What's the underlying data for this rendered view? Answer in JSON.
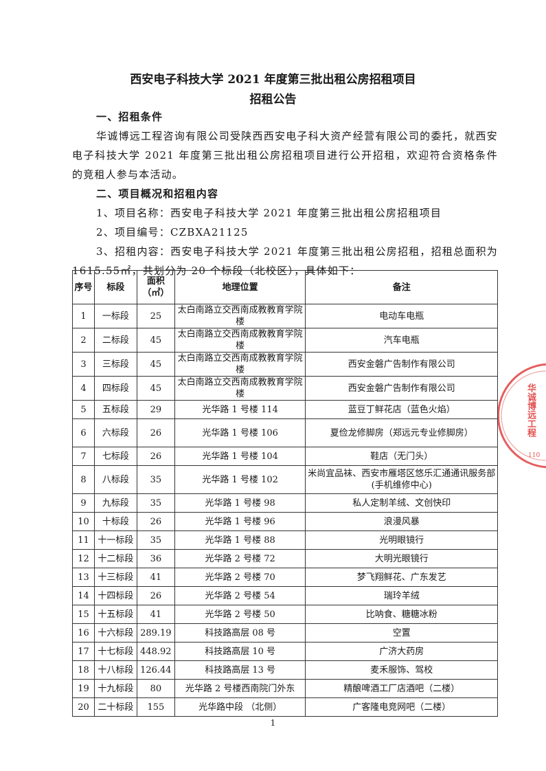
{
  "title": {
    "line1": "西安电子科技大学 2021 年度第三批出租公房招租项目",
    "line2": "招租公告"
  },
  "sections": {
    "s1_heading": "一、招租条件",
    "s1_body": "华诚博远工程咨询有限公司受陕西西安电子科大资产经营有限公司的委托，就西安电子科技大学 2021 年度第三批出租公房招租项目进行公开招租，欢迎符合资格条件的竞租人参与本活动。",
    "s2_heading": "二、项目概况和招租内容",
    "item1": "1、项目名称：西安电子科技大学 2021 年度第三批出租公房招租项目",
    "item2": "2、项目编号：CZBXA21125",
    "item3": "3、招租内容：西安电子科技大学 2021 年度第三批出租公房招租，招租总面积为 1615.55㎡，共划分为 20 个标段（北校区），具体如下："
  },
  "table": {
    "headers": [
      "序号",
      "标段",
      "面积（㎡）",
      "地理位置",
      "备注"
    ],
    "rows": [
      [
        "1",
        "一标段",
        "25",
        "太白南路立交西南成教教育学院楼",
        "电动车电瓶"
      ],
      [
        "2",
        "二标段",
        "45",
        "太白南路立交西南成教教育学院楼",
        "汽车电瓶"
      ],
      [
        "3",
        "三标段",
        "45",
        "太白南路立交西南成教教育学院楼",
        "西安金磐广告制作有限公司"
      ],
      [
        "4",
        "四标段",
        "45",
        "太白南路立交西南成教教育学院楼",
        "西安金磐广告制作有限公司"
      ],
      [
        "5",
        "五标段",
        "29",
        "光华路 1 号楼 114",
        "蓝豆丁鲜花店（蓝色火焰）"
      ],
      [
        "6",
        "六标段",
        "26",
        "光华路 1 号楼 106",
        "夏俭龙修脚房（郑远元专业修脚房）"
      ],
      [
        "7",
        "七标段",
        "26",
        "光华路 1 号楼 104",
        "鞋店（无门头）"
      ],
      [
        "8",
        "八标段",
        "35",
        "光华路 1 号楼 102",
        "米尚宜品袜、西安市雁塔区悠乐汇通通讯服务部(手机维修中心)"
      ],
      [
        "9",
        "九标段",
        "35",
        "光华路 1 号楼 98",
        "私人定制羊绒、文创快印"
      ],
      [
        "10",
        "十标段",
        "26",
        "光华路 1 号楼 96",
        "浪漫风暴"
      ],
      [
        "11",
        "十一标段",
        "35",
        "光华路 1 号楼 88",
        "光明眼镜行"
      ],
      [
        "12",
        "十二标段",
        "36",
        "光华路 2 号楼 72",
        "大明光眼镜行"
      ],
      [
        "13",
        "十三标段",
        "41",
        "光华路 2 号楼 70",
        "梦飞翔鲜花、广东发艺"
      ],
      [
        "14",
        "十四标段",
        "26",
        "光华路 2 号楼 54",
        "瑞玲羊绒"
      ],
      [
        "15",
        "十五标段",
        "41",
        "光华路 2 号楼 50",
        "比呐食、糖糖冰粉"
      ],
      [
        "16",
        "十六标段",
        "289.19",
        "科技路高层 08 号",
        "空置"
      ],
      [
        "17",
        "十七标段",
        "448.92",
        "科技路高层 10 号",
        "广济大药房"
      ],
      [
        "18",
        "十八标段",
        "126.44",
        "科技路高层 13 号",
        "麦禾服饰、驾校"
      ],
      [
        "19",
        "十九标段",
        "80",
        "光华路 2 号楼西南院门外东",
        "精酿啤酒工厂店酒吧（二楼）"
      ],
      [
        "20",
        "二十标段",
        "155",
        "光华路中段 （北侧）",
        "广客隆电竞网吧（二楼）"
      ]
    ]
  },
  "seal": {
    "text": "华诚博远工程",
    "number": "110"
  },
  "page_number": "1"
}
